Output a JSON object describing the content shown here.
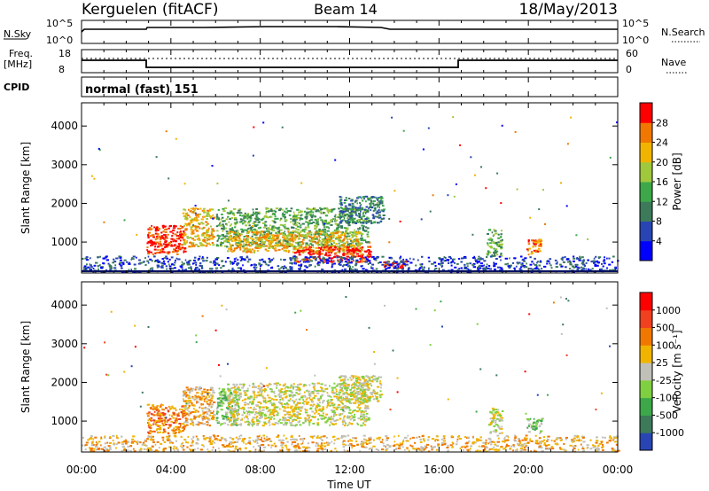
{
  "header": {
    "station": "Kerguelen (fitACF)",
    "beam": "Beam 14",
    "date": "18/May/2013"
  },
  "panels": {
    "nsky": {
      "left_label": "N.Sky",
      "right_label": "N.Search",
      "top_tick": "10^5",
      "bottom_tick": "10^0"
    },
    "freq": {
      "left_label_1": "Freq.",
      "left_label_2": "[MHz]",
      "left_ticks": [
        "18",
        "8"
      ],
      "right_ticks": [
        "60",
        "0"
      ],
      "right_label": "Nave"
    },
    "cpid": {
      "label": "CPID",
      "value": "normal (fast) 151"
    }
  },
  "chart_data": [
    {
      "type": "heatmap",
      "name": "power",
      "xlabel": "Time UT",
      "ylabel": "Slant Range [km]",
      "xlim": [
        0,
        24
      ],
      "ylim": [
        200,
        4600
      ],
      "yticks": [
        1000,
        2000,
        3000,
        4000
      ],
      "colorbar": {
        "label": "Power [dB]",
        "ticks": [
          "4",
          "8",
          "12",
          "16",
          "20",
          "24",
          "28"
        ],
        "colors": [
          "#0000ff",
          "#2845b3",
          "#3c7a5a",
          "#3ca84a",
          "#a0c83c",
          "#f0b400",
          "#f07800",
          "#ff0000"
        ]
      },
      "regions": [
        {
          "t0": 2.9,
          "t1": 4.6,
          "r0": 700,
          "r1": 1450,
          "level": 7
        },
        {
          "t0": 4.5,
          "t1": 5.9,
          "r0": 900,
          "r1": 1900,
          "level": 5
        },
        {
          "t0": 6.0,
          "t1": 12.8,
          "r0": 900,
          "r1": 1900,
          "level": 3
        },
        {
          "t0": 6.5,
          "t1": 12.5,
          "r0": 750,
          "r1": 1300,
          "level": 5
        },
        {
          "t0": 9.5,
          "t1": 12.9,
          "r0": 500,
          "r1": 900,
          "level": 7
        },
        {
          "t0": 11.5,
          "t1": 13.5,
          "r0": 1500,
          "r1": 2200,
          "level": 2
        },
        {
          "t0": 13.5,
          "t1": 14.5,
          "r0": 330,
          "r1": 520,
          "level": 7
        },
        {
          "t0": 18.1,
          "t1": 18.8,
          "r0": 650,
          "r1": 1350,
          "level": 3
        },
        {
          "t0": 19.9,
          "t1": 20.6,
          "r0": 700,
          "r1": 1100,
          "level": 6
        },
        {
          "t0": 0.0,
          "t1": 24.0,
          "r0": 230,
          "r1": 650,
          "level": 1
        }
      ]
    },
    {
      "type": "heatmap",
      "name": "velocity",
      "xlabel": "Time UT",
      "ylabel": "Slant Range [km]",
      "xlim": [
        0,
        24
      ],
      "ylim": [
        200,
        4600
      ],
      "xticks": [
        "00:00",
        "04:00",
        "08:00",
        "12:00",
        "16:00",
        "20:00",
        "00:00"
      ],
      "yticks": [
        1000,
        2000,
        3000,
        4000
      ],
      "colorbar": {
        "label": "Velocity [m s^-1]",
        "ticks": [
          "1000",
          "500",
          "100",
          "25",
          "-25",
          "-100",
          "-500",
          "-1000"
        ],
        "colors": [
          "#2845b3",
          "#3c7a5a",
          "#3ca84a",
          "#7fd040",
          "#c0c0b8",
          "#f0b400",
          "#f07800",
          "#f04020",
          "#ff0000"
        ]
      },
      "regions": [
        {
          "t0": 2.9,
          "t1": 4.6,
          "r0": 700,
          "r1": 1450,
          "level": 6
        },
        {
          "t0": 4.5,
          "t1": 5.9,
          "r0": 900,
          "r1": 1900,
          "level": 5
        },
        {
          "t0": 6.0,
          "t1": 7.0,
          "r0": 900,
          "r1": 1900,
          "level": 3
        },
        {
          "t0": 6.5,
          "t1": 12.8,
          "r0": 900,
          "r1": 2000,
          "level": 4
        },
        {
          "t0": 11.5,
          "t1": 13.4,
          "r0": 1500,
          "r1": 2200,
          "level": 4
        },
        {
          "t0": 18.2,
          "t1": 18.8,
          "r0": 700,
          "r1": 1350,
          "level": 4
        },
        {
          "t0": 19.9,
          "t1": 20.6,
          "r0": 700,
          "r1": 1100,
          "level": 3
        },
        {
          "t0": 0.0,
          "t1": 24.0,
          "r0": 230,
          "r1": 650,
          "level": 5
        }
      ]
    }
  ]
}
